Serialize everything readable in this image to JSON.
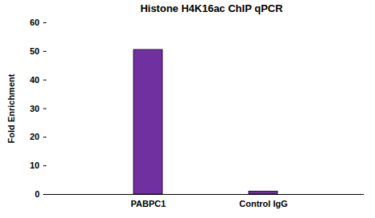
{
  "chart_data": {
    "type": "bar",
    "title": "Histone H4K16ac ChIP qPCR",
    "y_label": "Fold Enrichment",
    "categories": [
      "PABPC1",
      "Control IgG"
    ],
    "values": [
      50.5,
      1
    ],
    "color": "#7030a0",
    "ylim": [
      0,
      60
    ],
    "yticks": [
      0,
      10,
      20,
      30,
      40,
      50,
      60
    ],
    "grid": false
  }
}
